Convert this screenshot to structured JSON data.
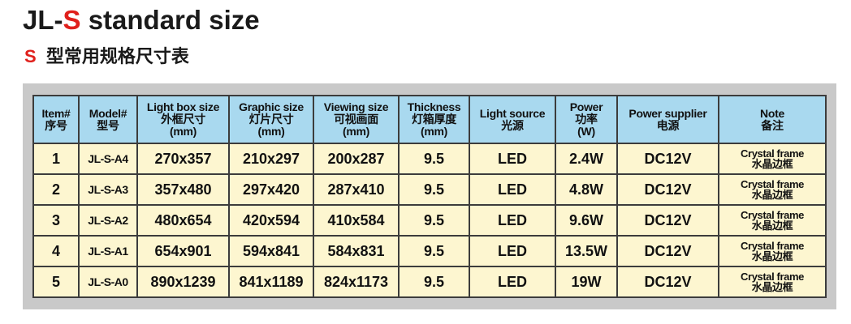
{
  "header": {
    "title": {
      "prefix": "JL-",
      "highlight": "S",
      "suffix": "standard size"
    },
    "subtitle": {
      "highlight": "S",
      "text": "型常用规格尺寸表"
    }
  },
  "table": {
    "headers": [
      [
        "Item#",
        "序号"
      ],
      [
        "Model#",
        "型号"
      ],
      [
        "Light box size",
        "外框尺寸",
        "(mm)"
      ],
      [
        "Graphic size",
        "灯片尺寸",
        "(mm)"
      ],
      [
        "Viewing size",
        "可视画面",
        "(mm)"
      ],
      [
        "Thickness",
        "灯箱厚度",
        "(mm)"
      ],
      [
        "Light source",
        "光源"
      ],
      [
        "Power",
        "功率",
        "(W)"
      ],
      [
        "Power supplier",
        "电源"
      ],
      [
        "Note",
        "备注"
      ]
    ],
    "rows": [
      [
        "1",
        "JL-S-A4",
        "270x357",
        "210x297",
        "200x287",
        "9.5",
        "LED",
        "2.4W",
        "DC12V",
        [
          "Crystal frame",
          "水晶边框"
        ]
      ],
      [
        "2",
        "JL-S-A3",
        "357x480",
        "297x420",
        "287x410",
        "9.5",
        "LED",
        "4.8W",
        "DC12V",
        [
          "Crystal frame",
          "水晶边框"
        ]
      ],
      [
        "3",
        "JL-S-A2",
        "480x654",
        "420x594",
        "410x584",
        "9.5",
        "LED",
        "9.6W",
        "DC12V",
        [
          "Crystal frame",
          "水晶边框"
        ]
      ],
      [
        "4",
        "JL-S-A1",
        "654x901",
        "594x841",
        "584x831",
        "9.5",
        "LED",
        "13.5W",
        "DC12V",
        [
          "Crystal frame",
          "水晶边框"
        ]
      ],
      [
        "5",
        "JL-S-A0",
        "890x1239",
        "841x1189",
        "824x1173",
        "9.5",
        "LED",
        "19W",
        "DC12V",
        [
          "Crystal frame",
          "水晶边框"
        ]
      ]
    ]
  }
}
